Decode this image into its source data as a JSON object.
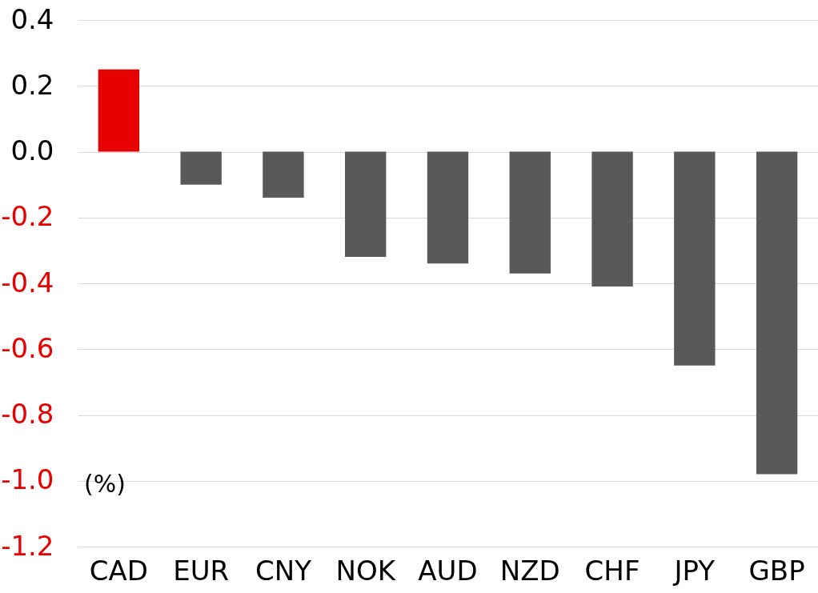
{
  "chart_data": {
    "type": "bar",
    "ylabel": "(%)",
    "categories": [
      "CAD",
      "EUR",
      "CNY",
      "NOK",
      "AUD",
      "NZD",
      "CHF",
      "JPY",
      "GBP"
    ],
    "values": [
      0.25,
      -0.1,
      -0.14,
      -0.32,
      -0.34,
      -0.37,
      -0.41,
      -0.65,
      -0.98
    ],
    "colors": [
      "#e60000",
      "#595959",
      "#595959",
      "#595959",
      "#595959",
      "#595959",
      "#595959",
      "#595959",
      "#595959"
    ],
    "ylim": [
      -1.2,
      0.4
    ],
    "yticks": [
      {
        "value": 0.4,
        "label": "0.4"
      },
      {
        "value": 0.2,
        "label": "0.2"
      },
      {
        "value": 0,
        "label": "0.0"
      },
      {
        "value": -0.2,
        "label": "-0.2"
      },
      {
        "value": -0.4,
        "label": "-0.4"
      },
      {
        "value": -0.6,
        "label": "-0.6"
      },
      {
        "value": -0.8,
        "label": "-0.8"
      },
      {
        "value": -1.0,
        "label": "-1.0"
      },
      {
        "value": -1.2,
        "label": "-1.2"
      }
    ],
    "grid": "y"
  }
}
